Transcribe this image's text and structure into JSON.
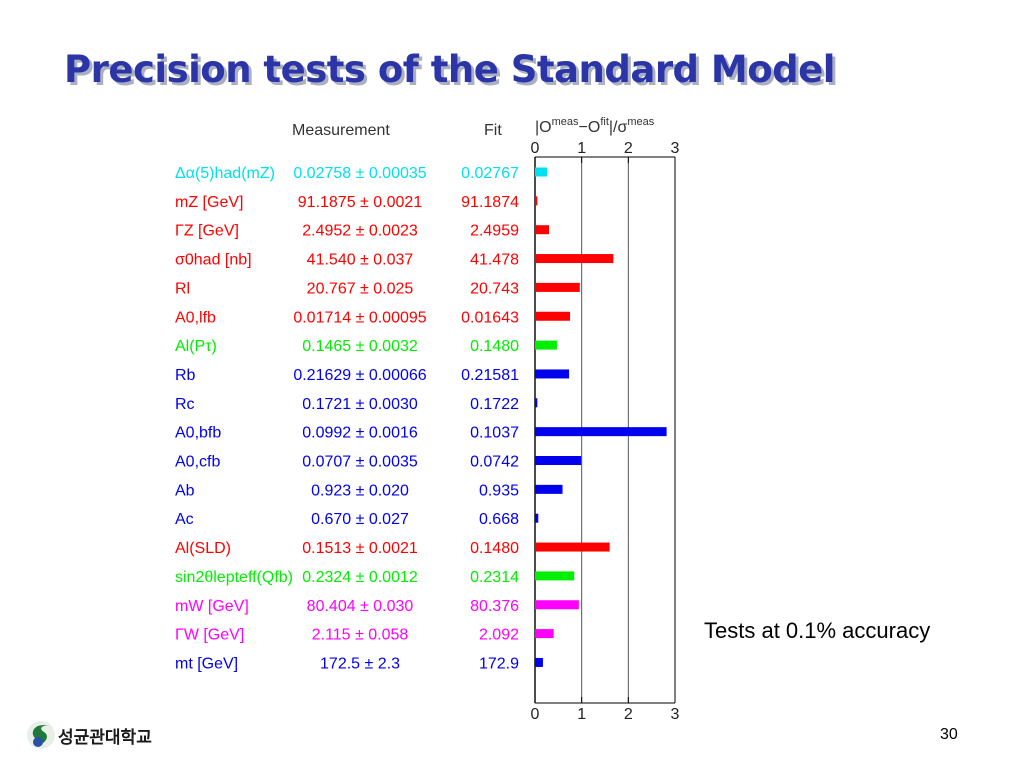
{
  "slide": {
    "title": "Precision tests of the Standard Model",
    "note": "Tests at 0.1% accuracy",
    "page_number": "30",
    "logo_text": "성균관대학교"
  },
  "chart_data": {
    "type": "bar",
    "orientation": "horizontal",
    "headers": {
      "measurement": "Measurement",
      "fit": "Fit",
      "pull": "|O^meas−O^fit|/σ^meas"
    },
    "xlim": [
      0,
      3
    ],
    "x_ticks": [
      "0",
      "1",
      "2",
      "3"
    ],
    "grid": "vertical lines at 1, 2, 3",
    "rows": [
      {
        "label": "Δα(5)had(mZ)",
        "measurement": "0.02758 ± 0.00035",
        "fit": "0.02767",
        "pull": 0.26,
        "color": "#00e0f0"
      },
      {
        "label": "mZ [GeV]",
        "measurement": "91.1875 ± 0.0021",
        "fit": "91.1874",
        "pull": 0.05,
        "color": "#ff0000"
      },
      {
        "label": "ΓZ [GeV]",
        "measurement": "2.4952 ± 0.0023",
        "fit": "2.4959",
        "pull": 0.3,
        "color": "#ff0000"
      },
      {
        "label": "σ0had [nb]",
        "measurement": "41.540 ± 0.037",
        "fit": "41.478",
        "pull": 1.68,
        "color": "#ff0000"
      },
      {
        "label": "Rl",
        "measurement": "20.767 ± 0.025",
        "fit": "20.743",
        "pull": 0.96,
        "color": "#ff0000"
      },
      {
        "label": "A0,lfb",
        "measurement": "0.01714 ± 0.00095",
        "fit": "0.01643",
        "pull": 0.75,
        "color": "#ff0000"
      },
      {
        "label": "Al(Pτ)",
        "measurement": "0.1465 ± 0.0032",
        "fit": "0.1480",
        "pull": 0.47,
        "color": "#00ee00"
      },
      {
        "label": "Rb",
        "measurement": "0.21629 ± 0.00066",
        "fit": "0.21581",
        "pull": 0.73,
        "color": "#0000ee"
      },
      {
        "label": "Rc",
        "measurement": "0.1721 ± 0.0030",
        "fit": "0.1722",
        "pull": 0.05,
        "color": "#0000ee"
      },
      {
        "label": "A0,bfb",
        "measurement": "0.0992 ± 0.0016",
        "fit": "0.1037",
        "pull": 2.82,
        "color": "#0000ee"
      },
      {
        "label": "A0,cfb",
        "measurement": "0.0707 ± 0.0035",
        "fit": "0.0742",
        "pull": 0.99,
        "color": "#0000ee"
      },
      {
        "label": "Ab",
        "measurement": "0.923 ± 0.020",
        "fit": "0.935",
        "pull": 0.59,
        "color": "#0000ee"
      },
      {
        "label": "Ac",
        "measurement": "0.670 ± 0.027",
        "fit": "0.668",
        "pull": 0.07,
        "color": "#0000ee"
      },
      {
        "label": "Al(SLD)",
        "measurement": "0.1513 ± 0.0021",
        "fit": "0.1480",
        "pull": 1.6,
        "color": "#ff0000"
      },
      {
        "label": "sin2θlepteff(Qfb)",
        "measurement": "0.2324 ± 0.0012",
        "fit": "0.2314",
        "pull": 0.84,
        "color": "#00ee00"
      },
      {
        "label": "mW [GeV]",
        "measurement": "80.404 ± 0.030",
        "fit": "80.376",
        "pull": 0.94,
        "color": "#ff00ff"
      },
      {
        "label": "ΓW [GeV]",
        "measurement": "2.115 ± 0.058",
        "fit": "2.092",
        "pull": 0.4,
        "color": "#ff00ff"
      },
      {
        "label": "mt [GeV]",
        "measurement": "172.5 ± 2.3",
        "fit": "172.9",
        "pull": 0.17,
        "color": "#0000ee"
      }
    ]
  }
}
